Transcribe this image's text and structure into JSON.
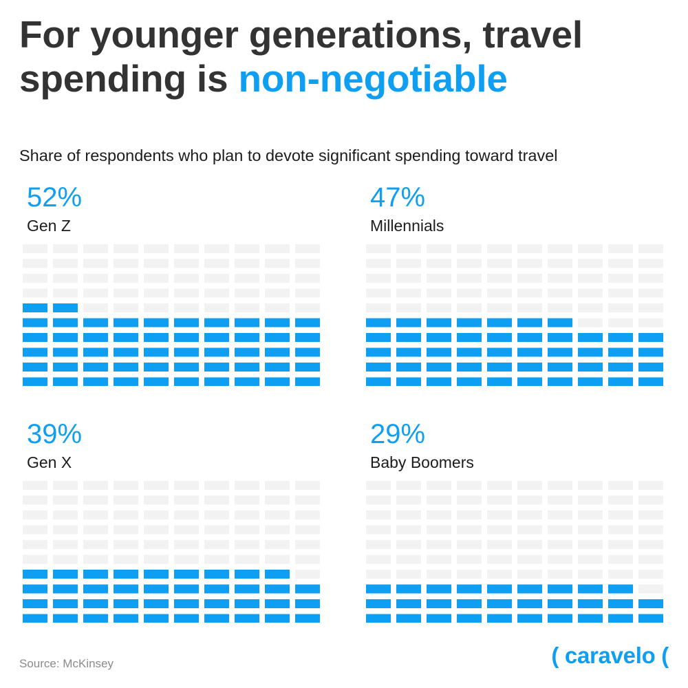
{
  "title": {
    "prefix": "For younger generations, travel spending is ",
    "highlight": "non-negotiable"
  },
  "subtitle": "Share of respondents who plan to devote significant spending toward travel",
  "source": "Source: McKinsey",
  "brand": "( caravelo (",
  "colors": {
    "filled": "#0f9ff2",
    "empty": "#f2f2f2",
    "title": "#333333"
  },
  "chart_data": [
    {
      "type": "waffle",
      "category": "Gen Z",
      "label": "52%",
      "value": 52,
      "total": 100
    },
    {
      "type": "waffle",
      "category": "Millennials",
      "label": "47%",
      "value": 47,
      "total": 100
    },
    {
      "type": "waffle",
      "category": "Gen X",
      "label": "39%",
      "value": 39,
      "total": 100
    },
    {
      "type": "waffle",
      "category": "Baby Boomers",
      "label": "29%",
      "value": 29,
      "total": 100
    }
  ]
}
